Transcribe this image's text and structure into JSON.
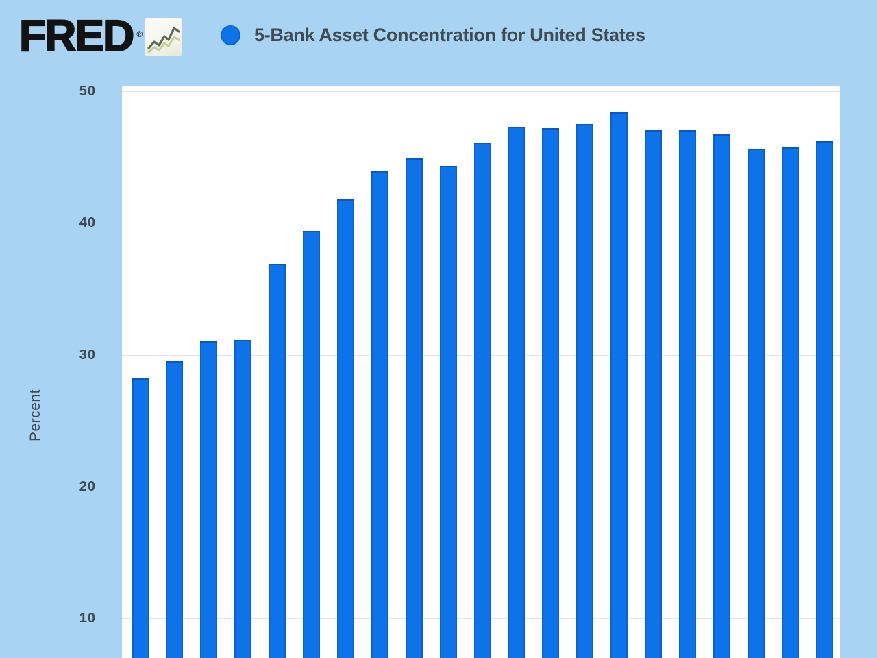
{
  "header": {
    "logo_text": "FRED",
    "logo_registered": "®",
    "series_title": "5-Bank Asset Concentration for United States"
  },
  "colors": {
    "page_background": "#a9d3f3",
    "plot_background": "#ffffff",
    "bar_fill": "#0e72e8",
    "bar_edge": "#0a5fc8",
    "gridline": "#e4e4e4",
    "axis_text": "#3e4a54",
    "title_text": "#404a52",
    "logo_text": "#121212",
    "icon_background": "#f3f2e8",
    "icon_line_dark": "#5f6757",
    "icon_line_light": "#c3cf9d"
  },
  "chart_data": {
    "type": "bar",
    "title": "5-Bank Asset Concentration for United States",
    "xlabel": "",
    "ylabel": "Percent",
    "y_ticks": [
      50,
      40,
      30,
      20,
      10
    ],
    "ylim_visible": [
      7.0,
      50.4
    ],
    "x_axis_note": "x-axis tick labels are cropped out of the visible screenshot; chart bottom is cut off",
    "grid": "horizontal only",
    "legend_position": "top, single item with round marker",
    "bar_count": 21,
    "values": [
      28.2,
      29.5,
      31.0,
      31.1,
      36.9,
      39.4,
      41.8,
      43.9,
      44.9,
      44.3,
      46.1,
      47.3,
      47.2,
      47.5,
      48.4,
      47.0,
      47.0,
      46.7,
      45.6,
      45.7,
      46.2
    ],
    "series": [
      {
        "name": "5-Bank Asset Concentration for United States",
        "marker_color": "#0e72e8",
        "values": [
          28.2,
          29.5,
          31.0,
          31.1,
          36.9,
          39.4,
          41.8,
          43.9,
          44.9,
          44.3,
          46.1,
          47.3,
          47.2,
          47.5,
          48.4,
          47.0,
          47.0,
          46.7,
          45.6,
          45.7,
          46.2
        ]
      }
    ]
  }
}
